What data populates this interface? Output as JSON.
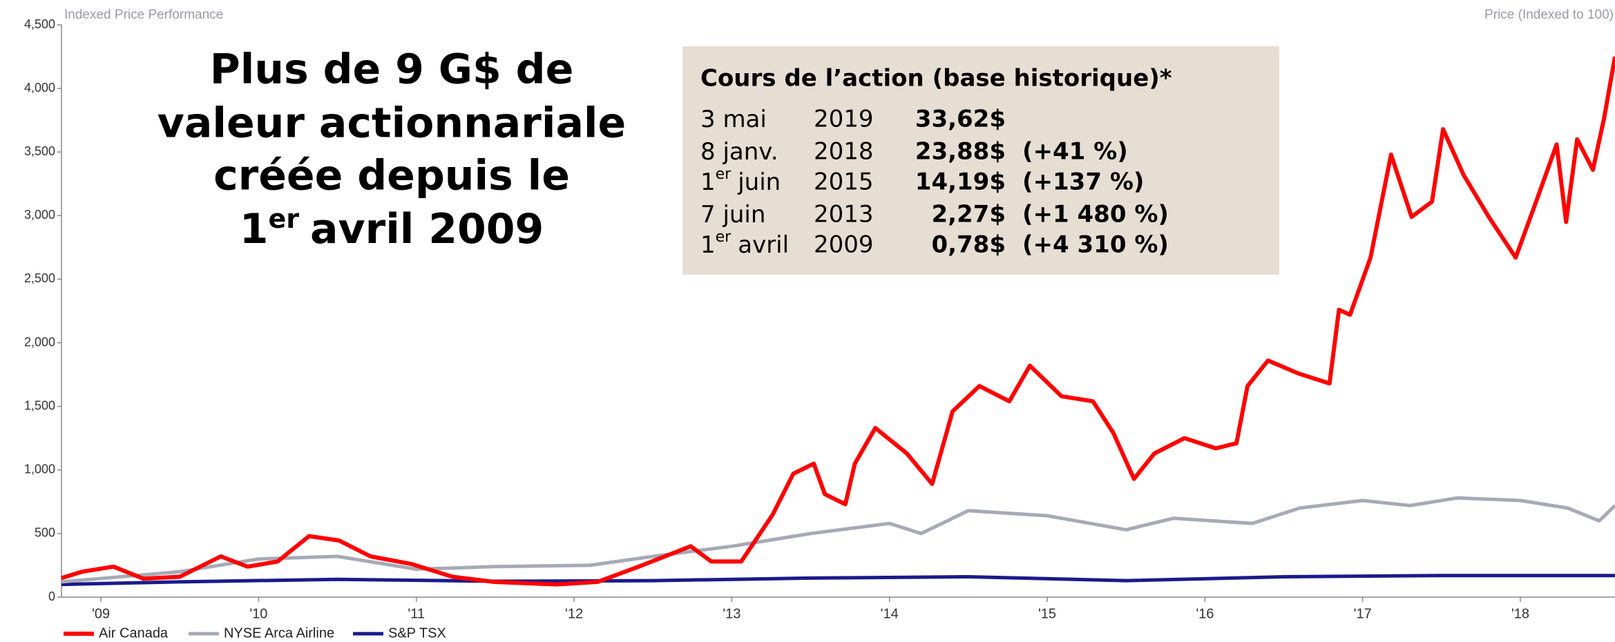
{
  "chart_data": {
    "type": "line",
    "left_label": "Indexed Price Performance",
    "right_label": "Price (Indexed to 100)",
    "xlim": [
      2009.25,
      2019.1
    ],
    "xticks": [
      {
        "value": 2009.5,
        "label": "'09"
      },
      {
        "value": 2010.5,
        "label": "'10"
      },
      {
        "value": 2011.5,
        "label": "'11"
      },
      {
        "value": 2012.5,
        "label": "'12"
      },
      {
        "value": 2013.5,
        "label": "'13"
      },
      {
        "value": 2014.5,
        "label": "'14"
      },
      {
        "value": 2015.5,
        "label": "'15"
      },
      {
        "value": 2016.5,
        "label": "'16"
      },
      {
        "value": 2017.5,
        "label": "'17"
      },
      {
        "value": 2018.5,
        "label": "'18"
      }
    ],
    "ylim": [
      0,
      4500
    ],
    "yticks": [
      0,
      500,
      {
        "value": 1000,
        "label": "1,000"
      },
      {
        "value": 1500,
        "label": "1,500"
      },
      {
        "value": 2000,
        "label": "2,000"
      },
      {
        "value": 2500,
        "label": "2,500"
      },
      {
        "value": 3000,
        "label": "3,000"
      },
      {
        "value": 3500,
        "label": "3,500"
      },
      {
        "value": 4000,
        "label": "4,000"
      },
      {
        "value": 4500,
        "label": "4,500"
      }
    ],
    "series": [
      {
        "name": "Air Canada",
        "color": "#ff0000",
        "x": [
          2009.25,
          2009.38,
          2009.58,
          2009.77,
          2010.0,
          2010.26,
          2010.43,
          2010.62,
          2010.82,
          2011.01,
          2011.21,
          2011.47,
          2011.73,
          2011.99,
          2012.39,
          2012.65,
          2012.91,
          2013.24,
          2013.37,
          2013.56,
          2013.76,
          2013.89,
          2014.02,
          2014.09,
          2014.22,
          2014.28,
          2014.41,
          2014.61,
          2014.77,
          2014.9,
          2015.07,
          2015.26,
          2015.39,
          2015.59,
          2015.79,
          2015.92,
          2016.05,
          2016.18,
          2016.37,
          2016.57,
          2016.7,
          2016.77,
          2016.9,
          2017.09,
          2017.29,
          2017.35,
          2017.42,
          2017.55,
          2017.68,
          2017.81,
          2017.94,
          2018.01,
          2018.14,
          2018.3,
          2018.47,
          2018.6,
          2018.73,
          2018.79,
          2018.86,
          2018.96,
          2019.03,
          2019.1
        ],
        "values": [
          150,
          200,
          240,
          145,
          160,
          320,
          240,
          280,
          480,
          445,
          320,
          260,
          160,
          120,
          100,
          120,
          240,
          400,
          280,
          280,
          650,
          970,
          1050,
          810,
          730,
          1050,
          1330,
          1130,
          890,
          1460,
          1660,
          1540,
          1820,
          1580,
          1540,
          1290,
          930,
          1130,
          1250,
          1170,
          1210,
          1660,
          1860,
          1760,
          1680,
          2260,
          2220,
          2670,
          3480,
          2990,
          3110,
          3680,
          3320,
          2990,
          2670,
          3110,
          3560,
          2950,
          3600,
          3360,
          3760,
          4250
        ]
      },
      {
        "name": "NYSE Arca Airline",
        "color": "#a6a9b6",
        "x": [
          2009.25,
          2010.0,
          2010.5,
          2011.0,
          2011.5,
          2012.0,
          2012.6,
          2013.0,
          2013.5,
          2014.0,
          2014.5,
          2014.7,
          2015.0,
          2015.5,
          2016.0,
          2016.3,
          2016.8,
          2017.1,
          2017.5,
          2017.8,
          2018.1,
          2018.5,
          2018.8,
          2019.0,
          2019.1
        ],
        "values": [
          120,
          200,
          300,
          320,
          220,
          240,
          250,
          320,
          400,
          500,
          580,
          500,
          680,
          640,
          530,
          620,
          580,
          700,
          760,
          720,
          780,
          760,
          700,
          600,
          720
        ]
      },
      {
        "name": "S&P TSX",
        "color": "#1a1a8c",
        "x": [
          2009.25,
          2010.0,
          2011.0,
          2012.0,
          2013.0,
          2014.0,
          2015.0,
          2016.0,
          2017.0,
          2018.0,
          2019.1
        ],
        "values": [
          100,
          120,
          140,
          125,
          130,
          150,
          160,
          130,
          160,
          170,
          170
        ]
      }
    ]
  },
  "headline": {
    "lines": [
      "Plus de 9 G$ de",
      "valeur actionnariale",
      "créée depuis le"
    ],
    "last": {
      "day": "1",
      "sup": "er",
      "rest": "avril 2009"
    }
  },
  "price_table": {
    "title": "Cours de l’action (base historique)*",
    "rows": [
      {
        "day": "3 mai",
        "year": "2019",
        "price": "33,62$"
      },
      {
        "day": "8 janv.",
        "year": "2018",
        "price": "23,88$",
        "change": "(+41 %)"
      },
      {
        "day": "1",
        "sup": "er",
        "month": "juin",
        "year": "2015",
        "price": "14,19$",
        "change": "(+137 %)"
      },
      {
        "day": "7 juin",
        "year": "2013",
        "price": "2,27$",
        "change": "(+1 480 %)"
      },
      {
        "day": "1",
        "sup": "er",
        "month": "avril",
        "year": "2009",
        "price": "0,78$",
        "change": "(+4 310 %)"
      }
    ]
  }
}
